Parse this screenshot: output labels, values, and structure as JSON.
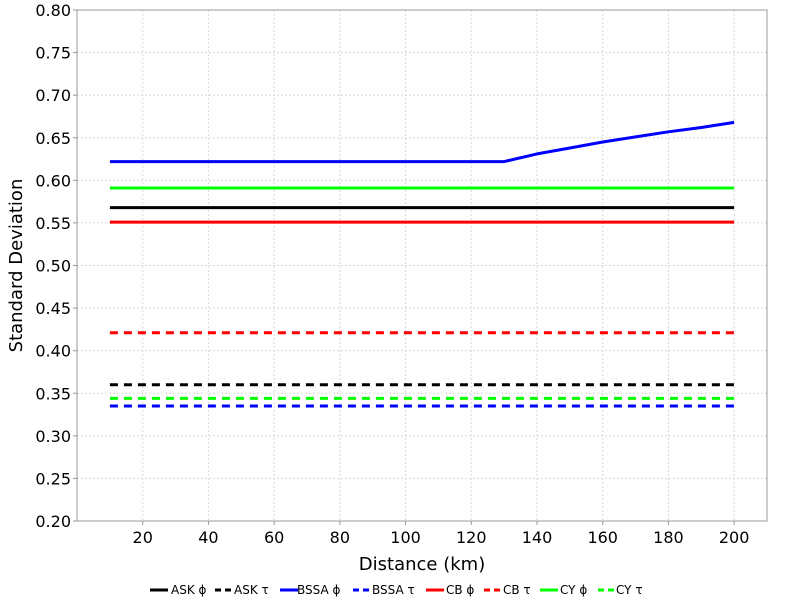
{
  "chart_data": {
    "type": "line",
    "title": "",
    "xlabel": "Distance (km)",
    "ylabel": "Standard Deviation",
    "xlim": [
      0,
      210
    ],
    "ylim": [
      0.2,
      0.8
    ],
    "xticks": [
      20,
      40,
      60,
      80,
      100,
      120,
      140,
      160,
      180,
      200
    ],
    "xtick_labels": [
      "20",
      "40",
      "60",
      "80",
      "100",
      "120",
      "140",
      "160",
      "180",
      "200"
    ],
    "yticks": [
      0.2,
      0.25,
      0.3,
      0.35,
      0.4,
      0.45,
      0.5,
      0.55,
      0.6,
      0.65,
      0.7,
      0.75,
      0.8
    ],
    "ytick_labels": [
      "0.20",
      "0.25",
      "0.30",
      "0.35",
      "0.40",
      "0.45",
      "0.50",
      "0.55",
      "0.60",
      "0.65",
      "0.70",
      "0.75",
      "0.80"
    ],
    "grid": true,
    "legend_position": "bottom",
    "series": [
      {
        "name": "ASK ϕ",
        "color": "#000000",
        "dash": "solid",
        "x": [
          10,
          200
        ],
        "y": [
          0.568,
          0.568
        ]
      },
      {
        "name": "ASK τ",
        "color": "#000000",
        "dash": "dashed",
        "x": [
          10,
          200
        ],
        "y": [
          0.36,
          0.36
        ]
      },
      {
        "name": "BSSA ϕ",
        "color": "#0000ff",
        "dash": "solid",
        "x": [
          10,
          130,
          140,
          150,
          160,
          170,
          180,
          190,
          200
        ],
        "y": [
          0.622,
          0.622,
          0.631,
          0.638,
          0.645,
          0.651,
          0.657,
          0.662,
          0.668
        ]
      },
      {
        "name": "BSSA τ",
        "color": "#0000ff",
        "dash": "dashed",
        "x": [
          10,
          200
        ],
        "y": [
          0.335,
          0.335
        ]
      },
      {
        "name": "CB ϕ",
        "color": "#ff0000",
        "dash": "solid",
        "x": [
          10,
          200
        ],
        "y": [
          0.551,
          0.551
        ]
      },
      {
        "name": "CB τ",
        "color": "#ff0000",
        "dash": "dashed",
        "x": [
          10,
          200
        ],
        "y": [
          0.421,
          0.421
        ]
      },
      {
        "name": "CY ϕ",
        "color": "#00ff00",
        "dash": "solid",
        "x": [
          10,
          200
        ],
        "y": [
          0.591,
          0.591
        ]
      },
      {
        "name": "CY τ",
        "color": "#00ff00",
        "dash": "dashed",
        "x": [
          10,
          200
        ],
        "y": [
          0.344,
          0.344
        ]
      }
    ]
  }
}
